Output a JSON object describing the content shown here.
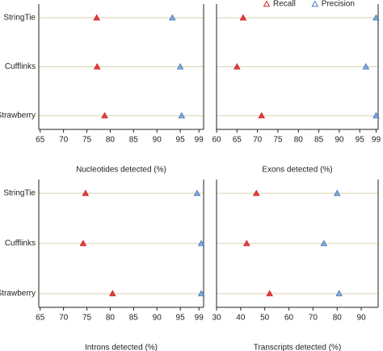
{
  "chart_data": [
    {
      "type": "dot",
      "xlabel": "Nucleotides detected (%)",
      "categories": [
        "StringTie",
        "Cufflinks",
        "Strawberry"
      ],
      "series": [
        {
          "name": "Recall",
          "color": "#d7262b",
          "values": [
            77.1,
            77.2,
            78.8
          ]
        },
        {
          "name": "Precision",
          "color": "#4a7fc4",
          "values": [
            93.3,
            95,
            95.3
          ]
        }
      ],
      "xlim": [
        64.7,
        100
      ],
      "xticks": [
        65,
        70,
        75,
        80,
        85,
        90,
        95,
        99
      ]
    },
    {
      "type": "dot",
      "xlabel": "Exons detected (%)",
      "series": [
        {
          "name": "Recall",
          "color": "#d7262b",
          "values": [
            66.5,
            65,
            71
          ]
        },
        {
          "name": "Precision",
          "color": "#4a7fc4",
          "values": [
            99,
            96.5,
            99
          ]
        }
      ],
      "xlim": [
        60,
        99.5
      ],
      "xticks": [
        60,
        65,
        70,
        75,
        80,
        85,
        90,
        95,
        99
      ]
    },
    {
      "type": "dot",
      "xlabel": "Introns detected (%)",
      "categories": [
        "StringTie",
        "Cufflinks",
        "Strawberry"
      ],
      "series": [
        {
          "name": "Recall",
          "color": "#d7262b",
          "values": [
            74.7,
            74.2,
            80.5
          ]
        },
        {
          "name": "Precision",
          "color": "#4a7fc4",
          "values": [
            98.6,
            99.5,
            99.5
          ]
        }
      ],
      "xlim": [
        64.7,
        100
      ],
      "xticks": [
        65,
        70,
        75,
        80,
        85,
        90,
        95,
        99
      ]
    },
    {
      "type": "dot",
      "xlabel": "Transcripts detected (%)",
      "series": [
        {
          "name": "Recall",
          "color": "#d7262b",
          "values": [
            46.5,
            42.5,
            52
          ]
        },
        {
          "name": "Precision",
          "color": "#4a7fc4",
          "values": [
            80,
            74.5,
            80.8
          ]
        }
      ],
      "xlim": [
        30,
        97
      ],
      "xticks": [
        30,
        40,
        50,
        60,
        70,
        80,
        90
      ]
    }
  ]
}
